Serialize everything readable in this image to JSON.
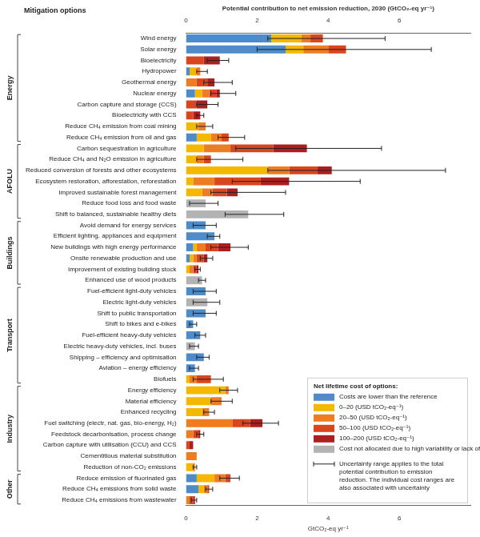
{
  "chart_data": {
    "type": "bar",
    "orientation": "horizontal",
    "stacked": true,
    "grid": false,
    "legend": "lower right",
    "ylabel": "Mitigation options",
    "xlabel_top": "Potential contribution to net emission reduction, 2030 (GtCO₂-eq yr⁻¹)",
    "xlabel": "GtCO₂-eq yr⁻¹",
    "xlim": [
      0,
      8
    ],
    "xticks": [
      0,
      2,
      4,
      6
    ],
    "legend_title": "Net lifetime cost of options:",
    "error_note": "Uncertainty range applies to the total potential contribution to emission reduction. The individual cost ranges are also associated with uncertainty",
    "groups": [
      {
        "name": "Energy",
        "count": 10
      },
      {
        "name": "AFOLU",
        "count": 7
      },
      {
        "name": "Buildings",
        "count": 6
      },
      {
        "name": "Transport",
        "count": 9
      },
      {
        "name": "Industry",
        "count": 8
      },
      {
        "name": "Other",
        "count": 3
      }
    ],
    "categories": [
      "Wind energy",
      "Solar energy",
      "Bioelectricity",
      "Hydropower",
      "Geothermal energy",
      "Nuclear energy",
      "Carbon capture and storage (CCS)",
      "Bioelectricity with CCS",
      "Reduce CH₄ emission from coal mining",
      "Reduce CH₄ emission from oil and gas",
      "Carbon sequestration in agriculture",
      "Reduce CH₄ and N₂O emission in agriculture",
      "Reduced conversion of forests and other ecosystems",
      "Ecosystem restoration, afforestation, reforestation",
      "Improved sustainable forest management",
      "Reduce food loss and food waste",
      "Shift to balanced, sustainable healthy diets",
      "Avoid demand for energy services",
      "Efficient lighting, appliances and equipment",
      "New buildings with high energy performance",
      "Onsite renewable production and use",
      "Improvement of existing building stock",
      "Enhanced use of wood products",
      "Fuel-efficient light-duty vehicles",
      "Electric light-duty vehicles",
      "Shift to public transportation",
      "Shift to bikes and e-bikes",
      "Fuel-efficient heavy-duty vehicles",
      "Electric heavy-duty vehicles, incl. buses",
      "Shipping – efficiency and optimisation",
      "Aviation – energy efficiency",
      "Biofuels",
      "Energy efficiency",
      "Material efficiency",
      "Enhanced recycling",
      "Fuel switching (electr, nat. gas, bio-energy, H₂)",
      "Feedstock decarbonisation, process change",
      "Carbon capture with utilisation (CCU) and CCS",
      "Cementitious material substitution",
      "Reduction of non-CO₂ emissions",
      "Reduce emission of fluorinated gas",
      "Reduce CH₄ emissions from solid waste",
      "Reduce CH₄ emissions from wastewater"
    ],
    "series": [
      {
        "name": "Costs are lower than the reference",
        "color": "#4f8ac9",
        "values": [
          2.4,
          2.8,
          0,
          0.1,
          0,
          0.25,
          0,
          0,
          0,
          0.3,
          0,
          0,
          0,
          0,
          0,
          0,
          0,
          0.55,
          0.8,
          0.2,
          0.1,
          0,
          0,
          0.55,
          0,
          0.55,
          0.2,
          0.4,
          0,
          0.5,
          0.25,
          0,
          0,
          0,
          0,
          0,
          0,
          0,
          0,
          0,
          0.3,
          0.35,
          0
        ]
      },
      {
        "name": "0–20 (USD tCO₂-eq⁻¹)",
        "color": "#f5b800",
        "values": [
          0.85,
          0.5,
          0,
          0.2,
          0,
          0.2,
          0,
          0,
          0.35,
          0.4,
          0.5,
          0.3,
          2.3,
          0.2,
          0.45,
          0,
          0,
          0,
          0,
          0.1,
          0.1,
          0.1,
          0,
          0,
          0,
          0,
          0,
          0,
          0,
          0,
          0,
          0.1,
          1.1,
          0.7,
          0.45,
          0,
          0,
          0,
          0,
          0.2,
          0.5,
          0.15,
          0
        ]
      },
      {
        "name": "20–50 (USD tCO₂-eq⁻¹)",
        "color": "#ee7d22",
        "values": [
          0.25,
          0.7,
          0,
          0.1,
          0.3,
          0.2,
          0,
          0,
          0.2,
          0.3,
          0.75,
          0.2,
          0.6,
          0.6,
          0.3,
          0,
          0,
          0,
          0,
          0.25,
          0.1,
          0.1,
          0,
          0,
          0,
          0,
          0,
          0,
          0,
          0,
          0,
          0.2,
          0.1,
          0.3,
          0.2,
          1.3,
          0.2,
          0,
          0.3,
          0.05,
          0.3,
          0.1,
          0.1
        ]
      },
      {
        "name": "50–100 (USD tCO₂-eq⁻¹)",
        "color": "#d9461e",
        "values": [
          0.35,
          0.5,
          0.5,
          0,
          0.3,
          0.2,
          0.3,
          0.2,
          0,
          0.2,
          1.2,
          0.2,
          0.8,
          1.3,
          0.4,
          0,
          0,
          0,
          0,
          0.35,
          0.2,
          0.1,
          0,
          0,
          0,
          0,
          0,
          0,
          0,
          0,
          0,
          0.4,
          0,
          0,
          0,
          0.5,
          0.15,
          0.1,
          0,
          0,
          0.15,
          0.05,
          0.1
        ]
      },
      {
        "name": "100–200 (USD tCO₂-eq⁻¹)",
        "color": "#ad1f1f",
        "values": [
          0,
          0,
          0.45,
          0,
          0.2,
          0.1,
          0.3,
          0.2,
          0,
          0,
          0.95,
          0,
          0.4,
          0.8,
          0.3,
          0,
          0,
          0,
          0,
          0.35,
          0.1,
          0.05,
          0,
          0,
          0,
          0,
          0,
          0,
          0,
          0,
          0,
          0,
          0,
          0,
          0,
          0.35,
          0.05,
          0.1,
          0,
          0,
          0,
          0,
          0.05
        ]
      },
      {
        "name": "Cost not allocated due to high variability or lack of data",
        "color": "#b3b3b3",
        "values": [
          0,
          0,
          0,
          0,
          0,
          0,
          0,
          0,
          0,
          0,
          0,
          0,
          0,
          0,
          0,
          0.55,
          1.75,
          0,
          0,
          0,
          0,
          0,
          0.45,
          0,
          0.6,
          0,
          0,
          0,
          0.25,
          0,
          0,
          0,
          0,
          0,
          0,
          0,
          0,
          0,
          0,
          0,
          0,
          0,
          0
        ]
      }
    ],
    "uncertainty": [
      [
        2.3,
        5.6
      ],
      [
        2.0,
        6.9
      ],
      [
        0.6,
        1.2
      ],
      [
        0.3,
        0.6
      ],
      [
        0.5,
        1.3
      ],
      [
        0.7,
        1.4
      ],
      [
        0.3,
        0.9
      ],
      [
        0.3,
        0.5
      ],
      [
        0.3,
        0.75
      ],
      [
        0.9,
        1.65
      ],
      [
        1.4,
        5.5
      ],
      [
        0.3,
        1.6
      ],
      [
        2.3,
        7.3
      ],
      [
        1.3,
        4.9
      ],
      [
        0.7,
        2.8
      ],
      [
        0.1,
        0.9
      ],
      [
        1.1,
        2.75
      ],
      [
        0.2,
        0.85
      ],
      [
        0.6,
        0.95
      ],
      [
        0.7,
        1.75
      ],
      [
        0.4,
        0.75
      ],
      [
        0.25,
        0.4
      ],
      [
        0.35,
        0.55
      ],
      [
        0.2,
        0.85
      ],
      [
        0.2,
        0.95
      ],
      [
        0.2,
        0.85
      ],
      [
        0.1,
        0.3
      ],
      [
        0.25,
        0.55
      ],
      [
        0.1,
        0.35
      ],
      [
        0.3,
        0.65
      ],
      [
        0.1,
        0.35
      ],
      [
        0.2,
        1.05
      ],
      [
        0.95,
        1.45
      ],
      [
        0.7,
        1.3
      ],
      [
        0.5,
        0.8
      ],
      [
        1.6,
        2.6
      ],
      [
        0.3,
        0.5
      ],
      null,
      null,
      [
        0.2,
        0.3
      ],
      [
        0.95,
        1.5
      ],
      [
        0.55,
        0.75
      ],
      [
        0.15,
        0.3
      ]
    ]
  }
}
